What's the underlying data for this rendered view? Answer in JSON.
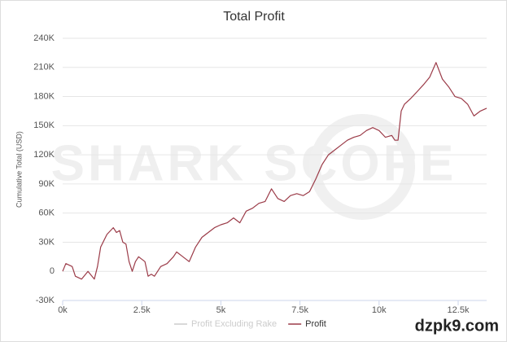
{
  "chart_data": {
    "type": "line",
    "title": "Total Profit",
    "ylabel": "Cumulative Total (USD)",
    "watermarks": [
      "SHARK SCOPE",
      "dzpk9.com"
    ],
    "x": [
      0,
      100,
      300,
      400,
      600,
      800,
      1000,
      1100,
      1200,
      1400,
      1600,
      1700,
      1800,
      1900,
      2000,
      2100,
      2200,
      2300,
      2400,
      2600,
      2700,
      2800,
      2900,
      3100,
      3300,
      3500,
      3600,
      3800,
      4000,
      4200,
      4400,
      4600,
      4800,
      5000,
      5200,
      5400,
      5600,
      5800,
      6000,
      6200,
      6400,
      6600,
      6800,
      7000,
      7200,
      7400,
      7600,
      7800,
      8000,
      8200,
      8400,
      8600,
      8800,
      9000,
      9200,
      9400,
      9600,
      9800,
      10000,
      10200,
      10400,
      10500,
      10600,
      10700,
      10800,
      11000,
      11200,
      11400,
      11600,
      11800,
      12000,
      12200,
      12400,
      12600,
      12800,
      13000,
      13200,
      13400
    ],
    "series": [
      {
        "name": "Profit Excluding Rake",
        "color": "#cccccc",
        "visible": false
      },
      {
        "name": "Profit",
        "color": "#9b3b48",
        "visible": true,
        "values": [
          0,
          8000,
          5000,
          -5000,
          -8000,
          0,
          -8000,
          5000,
          25000,
          38000,
          45000,
          40000,
          42000,
          30000,
          28000,
          10000,
          0,
          10000,
          15000,
          10000,
          -5000,
          -3000,
          -5000,
          5000,
          8000,
          15000,
          20000,
          15000,
          10000,
          25000,
          35000,
          40000,
          45000,
          48000,
          50000,
          55000,
          50000,
          62000,
          65000,
          70000,
          72000,
          85000,
          75000,
          72000,
          78000,
          80000,
          78000,
          82000,
          95000,
          110000,
          120000,
          125000,
          130000,
          135000,
          138000,
          140000,
          145000,
          148000,
          145000,
          138000,
          140000,
          135000,
          135000,
          165000,
          172000,
          178000,
          185000,
          192000,
          200000,
          215000,
          198000,
          190000,
          180000,
          178000,
          172000,
          160000,
          165000,
          168000
        ]
      }
    ],
    "xlim": [
      0,
      13400
    ],
    "xticks": [
      {
        "value": 0,
        "label": "0k"
      },
      {
        "value": 2500,
        "label": "2.5k"
      },
      {
        "value": 5000,
        "label": "5k"
      },
      {
        "value": 7500,
        "label": "7.5k"
      },
      {
        "value": 10000,
        "label": "10k"
      },
      {
        "value": 12500,
        "label": "12.5k"
      }
    ],
    "ylim": [
      -30000,
      240000
    ],
    "yticks": [
      {
        "value": -30000,
        "label": "-30K"
      },
      {
        "value": 0,
        "label": "0"
      },
      {
        "value": 30000,
        "label": "30K"
      },
      {
        "value": 60000,
        "label": "60K"
      },
      {
        "value": 90000,
        "label": "90K"
      },
      {
        "value": 120000,
        "label": "120K"
      },
      {
        "value": 150000,
        "label": "150K"
      },
      {
        "value": 180000,
        "label": "180K"
      },
      {
        "value": 210000,
        "label": "210K"
      },
      {
        "value": 240000,
        "label": "240K"
      }
    ],
    "grid": true
  }
}
